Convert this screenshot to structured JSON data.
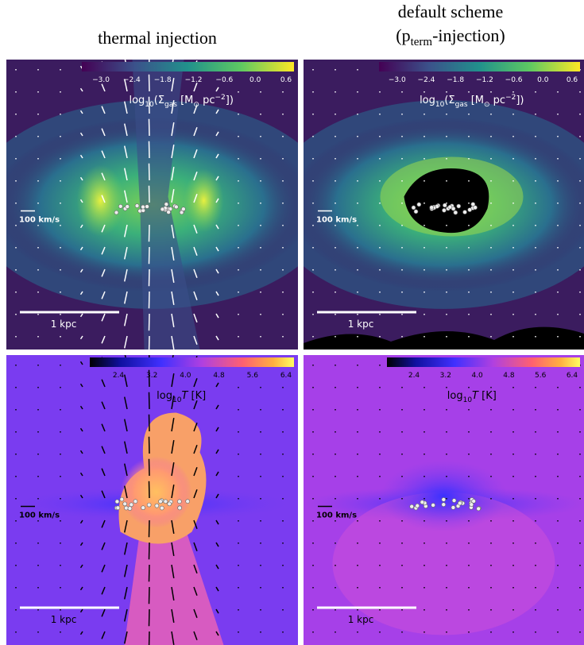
{
  "columns": {
    "left": {
      "title": "thermal injection"
    },
    "right": {
      "title": "default scheme",
      "subtitle_parts": [
        "(p",
        "term",
        "-injection)"
      ]
    }
  },
  "colorbars": {
    "density": {
      "ticks": [
        "−3.0",
        "−2.4",
        "−1.8",
        "−1.2",
        "−0.6",
        "0.0",
        "0.6"
      ],
      "label_parts": [
        "log",
        "10",
        "(Σ",
        "gas",
        " [M",
        "⊙",
        " pc",
        "−2",
        "])"
      ]
    },
    "temperature": {
      "ticks": [
        "2.4",
        "3.2",
        "4.0",
        "4.8",
        "5.6",
        "6.4"
      ],
      "label_parts": [
        "log",
        "10",
        "T",
        " [K]"
      ]
    }
  },
  "annotations": {
    "scale_bar": "1 kpc",
    "velocity": "100 km/s"
  }
}
